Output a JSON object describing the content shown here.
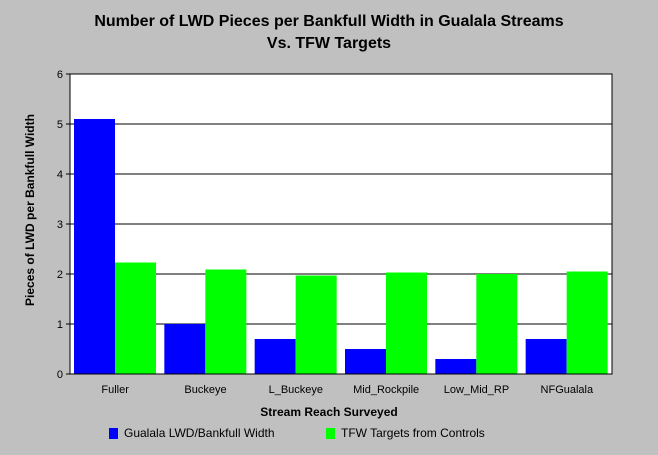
{
  "chart_data": {
    "type": "bar",
    "title": "Number of LWD Pieces per Bankfull Width in Gualala Streams",
    "subtitle": "Vs. TFW Targets",
    "xlabel": "Stream Reach Surveyed",
    "ylabel": "Pieces of LWD per Bankfull Width",
    "categories": [
      "Fuller",
      "Buckeye",
      "L_Buckeye",
      "Mid_Rockpile",
      "Low_Mid_RP",
      "NFGualala"
    ],
    "series": [
      {
        "name": "Gualala LWD/Bankfull Width",
        "color": "#0000ff",
        "values": [
          5.1,
          1.0,
          0.7,
          0.5,
          0.3,
          0.7
        ]
      },
      {
        "name": "TFW Targets from Controls",
        "color": "#00ff00",
        "values": [
          2.23,
          2.09,
          1.97,
          2.03,
          2.0,
          2.05
        ]
      }
    ],
    "ylim": [
      0,
      6
    ],
    "yticks": [
      0,
      1,
      2,
      3,
      4,
      5,
      6
    ],
    "grid": true,
    "legend_position": "bottom"
  },
  "colors": {
    "background": "#c0c0c0",
    "plot_background": "#ffffff",
    "grid": "#000000"
  }
}
